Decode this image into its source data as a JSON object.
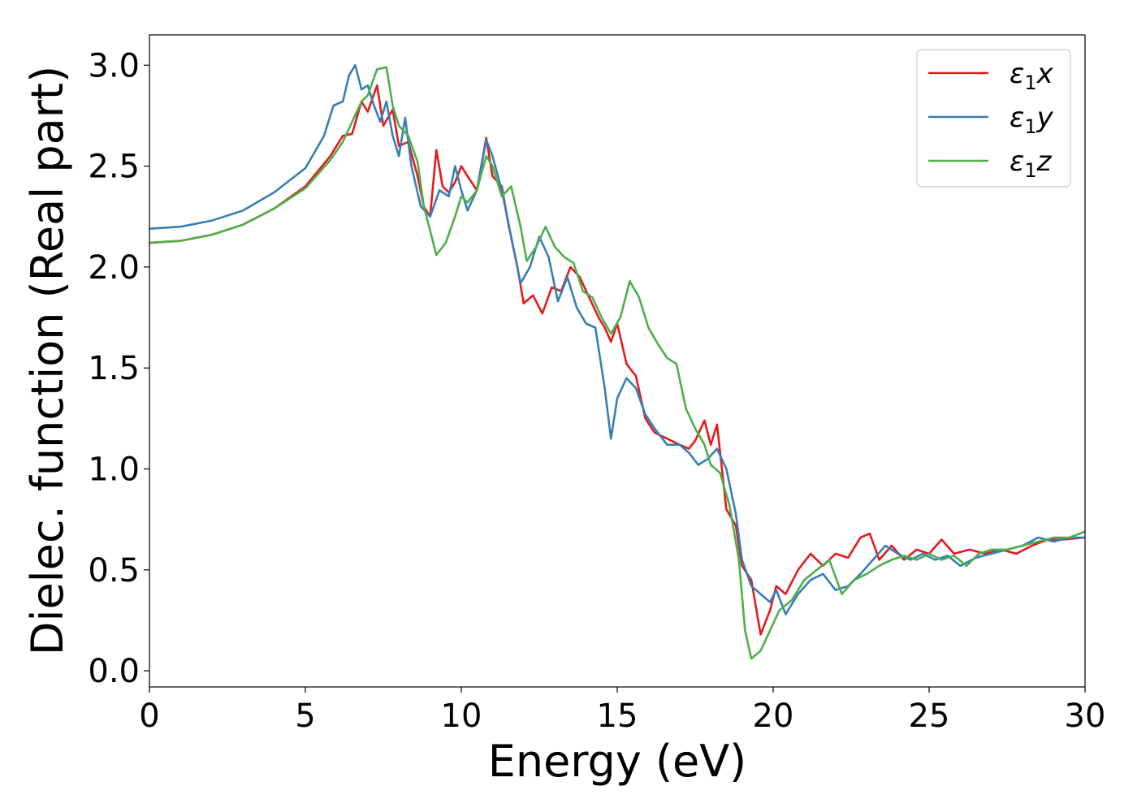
{
  "chart_data": {
    "type": "line",
    "title": "",
    "xlabel": "Energy (eV)",
    "ylabel": "Dielec. function (Real part)",
    "xlim": [
      0,
      30
    ],
    "ylim": [
      -0.08,
      3.15
    ],
    "xticks": [
      0,
      5,
      10,
      15,
      20,
      25,
      30
    ],
    "xtick_labels": [
      "0",
      "5",
      "10",
      "15",
      "20",
      "25",
      "30"
    ],
    "yticks": [
      0.0,
      0.5,
      1.0,
      1.5,
      2.0,
      2.5,
      3.0
    ],
    "ytick_labels": [
      "0.0",
      "0.5",
      "1.0",
      "1.5",
      "2.0",
      "2.5",
      "3.0"
    ],
    "grid": false,
    "legend_position": "top-right",
    "series": [
      {
        "name": "ε1x",
        "legend_base": "ε",
        "legend_sub": "1",
        "legend_var": "x",
        "color": "#e41a1c",
        "points": [
          [
            0,
            2.12
          ],
          [
            1,
            2.13
          ],
          [
            2,
            2.16
          ],
          [
            3,
            2.21
          ],
          [
            4,
            2.29
          ],
          [
            5,
            2.4
          ],
          [
            5.8,
            2.55
          ],
          [
            6.2,
            2.65
          ],
          [
            6.5,
            2.66
          ],
          [
            6.8,
            2.82
          ],
          [
            7.0,
            2.77
          ],
          [
            7.3,
            2.9
          ],
          [
            7.5,
            2.7
          ],
          [
            7.8,
            2.78
          ],
          [
            8.0,
            2.6
          ],
          [
            8.3,
            2.62
          ],
          [
            8.6,
            2.45
          ],
          [
            8.8,
            2.3
          ],
          [
            9.0,
            2.25
          ],
          [
            9.2,
            2.58
          ],
          [
            9.4,
            2.4
          ],
          [
            9.6,
            2.37
          ],
          [
            9.8,
            2.42
          ],
          [
            10.0,
            2.5
          ],
          [
            10.2,
            2.45
          ],
          [
            10.5,
            2.38
          ],
          [
            10.8,
            2.64
          ],
          [
            11.0,
            2.45
          ],
          [
            11.3,
            2.4
          ],
          [
            11.5,
            2.22
          ],
          [
            11.8,
            2.0
          ],
          [
            12.0,
            1.82
          ],
          [
            12.3,
            1.86
          ],
          [
            12.6,
            1.77
          ],
          [
            12.9,
            1.9
          ],
          [
            13.2,
            1.88
          ],
          [
            13.5,
            2.0
          ],
          [
            13.8,
            1.95
          ],
          [
            14.1,
            1.85
          ],
          [
            14.4,
            1.75
          ],
          [
            14.6,
            1.7
          ],
          [
            14.8,
            1.63
          ],
          [
            15.0,
            1.72
          ],
          [
            15.3,
            1.52
          ],
          [
            15.6,
            1.46
          ],
          [
            15.9,
            1.25
          ],
          [
            16.2,
            1.18
          ],
          [
            16.6,
            1.15
          ],
          [
            17.0,
            1.12
          ],
          [
            17.3,
            1.1
          ],
          [
            17.5,
            1.14
          ],
          [
            17.8,
            1.24
          ],
          [
            18.0,
            1.12
          ],
          [
            18.2,
            1.22
          ],
          [
            18.5,
            0.8
          ],
          [
            18.8,
            0.72
          ],
          [
            19.0,
            0.52
          ],
          [
            19.3,
            0.45
          ],
          [
            19.6,
            0.18
          ],
          [
            19.9,
            0.3
          ],
          [
            20.1,
            0.42
          ],
          [
            20.4,
            0.38
          ],
          [
            20.8,
            0.5
          ],
          [
            21.2,
            0.58
          ],
          [
            21.6,
            0.52
          ],
          [
            22.0,
            0.58
          ],
          [
            22.4,
            0.56
          ],
          [
            22.8,
            0.66
          ],
          [
            23.1,
            0.68
          ],
          [
            23.4,
            0.55
          ],
          [
            23.8,
            0.62
          ],
          [
            24.2,
            0.55
          ],
          [
            24.6,
            0.6
          ],
          [
            25.0,
            0.58
          ],
          [
            25.4,
            0.65
          ],
          [
            25.8,
            0.58
          ],
          [
            26.3,
            0.6
          ],
          [
            26.8,
            0.58
          ],
          [
            27.3,
            0.6
          ],
          [
            27.8,
            0.58
          ],
          [
            28.3,
            0.62
          ],
          [
            28.8,
            0.65
          ],
          [
            29.3,
            0.65
          ],
          [
            30,
            0.66
          ]
        ]
      },
      {
        "name": "ε1y",
        "legend_base": "ε",
        "legend_sub": "1",
        "legend_var": "y",
        "color": "#377eb8",
        "points": [
          [
            0,
            2.19
          ],
          [
            1,
            2.2
          ],
          [
            2,
            2.23
          ],
          [
            3,
            2.28
          ],
          [
            4,
            2.37
          ],
          [
            5,
            2.49
          ],
          [
            5.6,
            2.65
          ],
          [
            5.9,
            2.8
          ],
          [
            6.2,
            2.82
          ],
          [
            6.4,
            2.95
          ],
          [
            6.6,
            3.0
          ],
          [
            6.8,
            2.88
          ],
          [
            7.0,
            2.9
          ],
          [
            7.2,
            2.8
          ],
          [
            7.4,
            2.72
          ],
          [
            7.6,
            2.82
          ],
          [
            7.8,
            2.65
          ],
          [
            8.0,
            2.55
          ],
          [
            8.2,
            2.74
          ],
          [
            8.4,
            2.5
          ],
          [
            8.7,
            2.3
          ],
          [
            9.0,
            2.25
          ],
          [
            9.3,
            2.38
          ],
          [
            9.6,
            2.35
          ],
          [
            9.8,
            2.5
          ],
          [
            10.0,
            2.38
          ],
          [
            10.2,
            2.28
          ],
          [
            10.5,
            2.38
          ],
          [
            10.8,
            2.63
          ],
          [
            11.0,
            2.55
          ],
          [
            11.3,
            2.38
          ],
          [
            11.6,
            2.15
          ],
          [
            11.9,
            1.92
          ],
          [
            12.2,
            2.0
          ],
          [
            12.5,
            2.15
          ],
          [
            12.8,
            2.05
          ],
          [
            13.1,
            1.83
          ],
          [
            13.4,
            1.95
          ],
          [
            13.7,
            1.8
          ],
          [
            14.0,
            1.72
          ],
          [
            14.3,
            1.7
          ],
          [
            14.6,
            1.4
          ],
          [
            14.8,
            1.15
          ],
          [
            15.0,
            1.35
          ],
          [
            15.3,
            1.45
          ],
          [
            15.6,
            1.4
          ],
          [
            15.9,
            1.27
          ],
          [
            16.2,
            1.2
          ],
          [
            16.6,
            1.12
          ],
          [
            17.0,
            1.12
          ],
          [
            17.3,
            1.08
          ],
          [
            17.6,
            1.02
          ],
          [
            17.9,
            1.05
          ],
          [
            18.2,
            1.1
          ],
          [
            18.5,
            1.0
          ],
          [
            18.8,
            0.78
          ],
          [
            19.0,
            0.55
          ],
          [
            19.3,
            0.42
          ],
          [
            19.6,
            0.38
          ],
          [
            19.9,
            0.34
          ],
          [
            20.1,
            0.4
          ],
          [
            20.4,
            0.28
          ],
          [
            20.8,
            0.38
          ],
          [
            21.2,
            0.45
          ],
          [
            21.6,
            0.48
          ],
          [
            22.0,
            0.4
          ],
          [
            22.4,
            0.42
          ],
          [
            22.8,
            0.48
          ],
          [
            23.2,
            0.55
          ],
          [
            23.6,
            0.62
          ],
          [
            24.0,
            0.58
          ],
          [
            24.4,
            0.55
          ],
          [
            24.8,
            0.58
          ],
          [
            25.2,
            0.55
          ],
          [
            25.6,
            0.57
          ],
          [
            26.0,
            0.52
          ],
          [
            26.5,
            0.56
          ],
          [
            27.0,
            0.58
          ],
          [
            27.5,
            0.6
          ],
          [
            28.0,
            0.62
          ],
          [
            28.5,
            0.66
          ],
          [
            29.0,
            0.64
          ],
          [
            29.5,
            0.66
          ],
          [
            30,
            0.66
          ]
        ]
      },
      {
        "name": "ε1z",
        "legend_base": "ε",
        "legend_sub": "1",
        "legend_var": "z",
        "color": "#4daf4a",
        "points": [
          [
            0,
            2.12
          ],
          [
            1,
            2.13
          ],
          [
            2,
            2.16
          ],
          [
            3,
            2.21
          ],
          [
            4,
            2.29
          ],
          [
            5,
            2.39
          ],
          [
            5.8,
            2.53
          ],
          [
            6.2,
            2.62
          ],
          [
            6.5,
            2.72
          ],
          [
            6.8,
            2.82
          ],
          [
            7.0,
            2.85
          ],
          [
            7.3,
            2.98
          ],
          [
            7.6,
            2.99
          ],
          [
            7.8,
            2.8
          ],
          [
            8.0,
            2.7
          ],
          [
            8.3,
            2.65
          ],
          [
            8.6,
            2.52
          ],
          [
            8.8,
            2.3
          ],
          [
            9.0,
            2.18
          ],
          [
            9.2,
            2.06
          ],
          [
            9.5,
            2.12
          ],
          [
            9.8,
            2.25
          ],
          [
            10.0,
            2.35
          ],
          [
            10.2,
            2.32
          ],
          [
            10.5,
            2.38
          ],
          [
            10.8,
            2.55
          ],
          [
            11.0,
            2.5
          ],
          [
            11.3,
            2.35
          ],
          [
            11.6,
            2.4
          ],
          [
            11.9,
            2.2
          ],
          [
            12.1,
            2.03
          ],
          [
            12.4,
            2.1
          ],
          [
            12.7,
            2.2
          ],
          [
            13.0,
            2.1
          ],
          [
            13.3,
            2.05
          ],
          [
            13.6,
            2.02
          ],
          [
            13.9,
            1.88
          ],
          [
            14.2,
            1.85
          ],
          [
            14.5,
            1.75
          ],
          [
            14.8,
            1.67
          ],
          [
            15.1,
            1.75
          ],
          [
            15.4,
            1.93
          ],
          [
            15.7,
            1.85
          ],
          [
            16.0,
            1.7
          ],
          [
            16.3,
            1.62
          ],
          [
            16.6,
            1.55
          ],
          [
            16.9,
            1.52
          ],
          [
            17.2,
            1.3
          ],
          [
            17.5,
            1.2
          ],
          [
            17.8,
            1.12
          ],
          [
            18.0,
            1.02
          ],
          [
            18.3,
            0.98
          ],
          [
            18.6,
            0.82
          ],
          [
            18.9,
            0.55
          ],
          [
            19.1,
            0.2
          ],
          [
            19.3,
            0.06
          ],
          [
            19.6,
            0.1
          ],
          [
            19.9,
            0.2
          ],
          [
            20.2,
            0.3
          ],
          [
            20.6,
            0.35
          ],
          [
            21.0,
            0.45
          ],
          [
            21.4,
            0.5
          ],
          [
            21.8,
            0.55
          ],
          [
            22.2,
            0.38
          ],
          [
            22.6,
            0.45
          ],
          [
            23.0,
            0.48
          ],
          [
            23.4,
            0.52
          ],
          [
            23.8,
            0.55
          ],
          [
            24.2,
            0.57
          ],
          [
            24.6,
            0.55
          ],
          [
            25.0,
            0.58
          ],
          [
            25.4,
            0.55
          ],
          [
            25.8,
            0.57
          ],
          [
            26.2,
            0.52
          ],
          [
            26.6,
            0.58
          ],
          [
            27.0,
            0.6
          ],
          [
            27.5,
            0.6
          ],
          [
            28.0,
            0.62
          ],
          [
            28.5,
            0.64
          ],
          [
            29.0,
            0.66
          ],
          [
            29.5,
            0.66
          ],
          [
            30,
            0.69
          ]
        ]
      }
    ]
  }
}
